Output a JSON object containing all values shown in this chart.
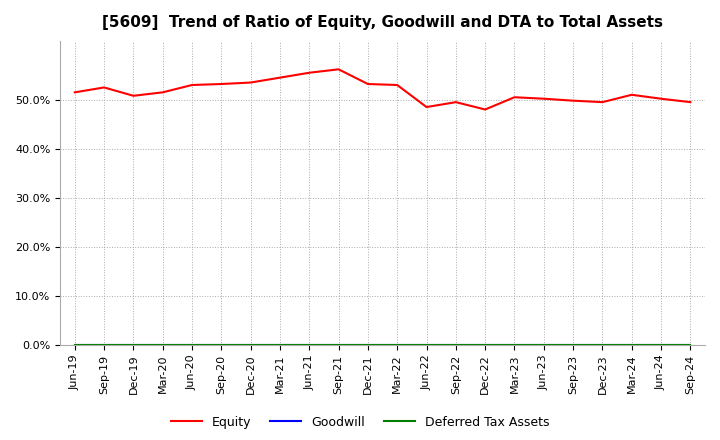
{
  "title": "[5609]  Trend of Ratio of Equity, Goodwill and DTA to Total Assets",
  "x_labels": [
    "Jun-19",
    "Sep-19",
    "Dec-19",
    "Mar-20",
    "Jun-20",
    "Sep-20",
    "Dec-20",
    "Mar-21",
    "Jun-21",
    "Sep-21",
    "Dec-21",
    "Mar-22",
    "Jun-22",
    "Sep-22",
    "Dec-22",
    "Mar-23",
    "Jun-23",
    "Sep-23",
    "Dec-23",
    "Mar-24",
    "Jun-24",
    "Sep-24"
  ],
  "equity": [
    51.5,
    52.5,
    50.8,
    51.5,
    53.0,
    53.2,
    53.5,
    54.5,
    55.5,
    56.2,
    53.2,
    53.0,
    48.5,
    49.5,
    48.0,
    50.5,
    50.2,
    49.8,
    49.5,
    51.0,
    50.2,
    49.5
  ],
  "goodwill": [
    0,
    0,
    0,
    0,
    0,
    0,
    0,
    0,
    0,
    0,
    0,
    0,
    0,
    0,
    0,
    0,
    0,
    0,
    0,
    0,
    0,
    0
  ],
  "dta": [
    0,
    0,
    0,
    0,
    0,
    0,
    0,
    0,
    0,
    0,
    0,
    0,
    0,
    0,
    0,
    0,
    0,
    0,
    0,
    0,
    0,
    0
  ],
  "equity_color": "#FF0000",
  "goodwill_color": "#0000FF",
  "dta_color": "#008000",
  "ylim": [
    0,
    62
  ],
  "yticks": [
    0,
    10,
    20,
    30,
    40,
    50
  ],
  "background_color": "#FFFFFF",
  "plot_bg_color": "#FFFFFF",
  "grid_color": "#AAAAAA",
  "title_fontsize": 11,
  "tick_fontsize": 8,
  "legend_labels": [
    "Equity",
    "Goodwill",
    "Deferred Tax Assets"
  ]
}
